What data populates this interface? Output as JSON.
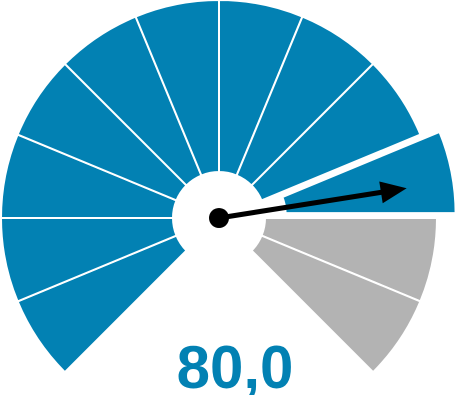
{
  "chart_data": {
    "type": "gauge",
    "value": 80.0,
    "value_label": "80,0",
    "range": [
      0,
      100
    ],
    "segment_count": 12,
    "sweep_degrees": 270,
    "highlighted_segment": 9,
    "colors": {
      "filled": "#0281b3",
      "empty": "#b3b3b3",
      "separator": "#ffffff",
      "needle": "#000000",
      "value_text": "#0281b3"
    }
  }
}
